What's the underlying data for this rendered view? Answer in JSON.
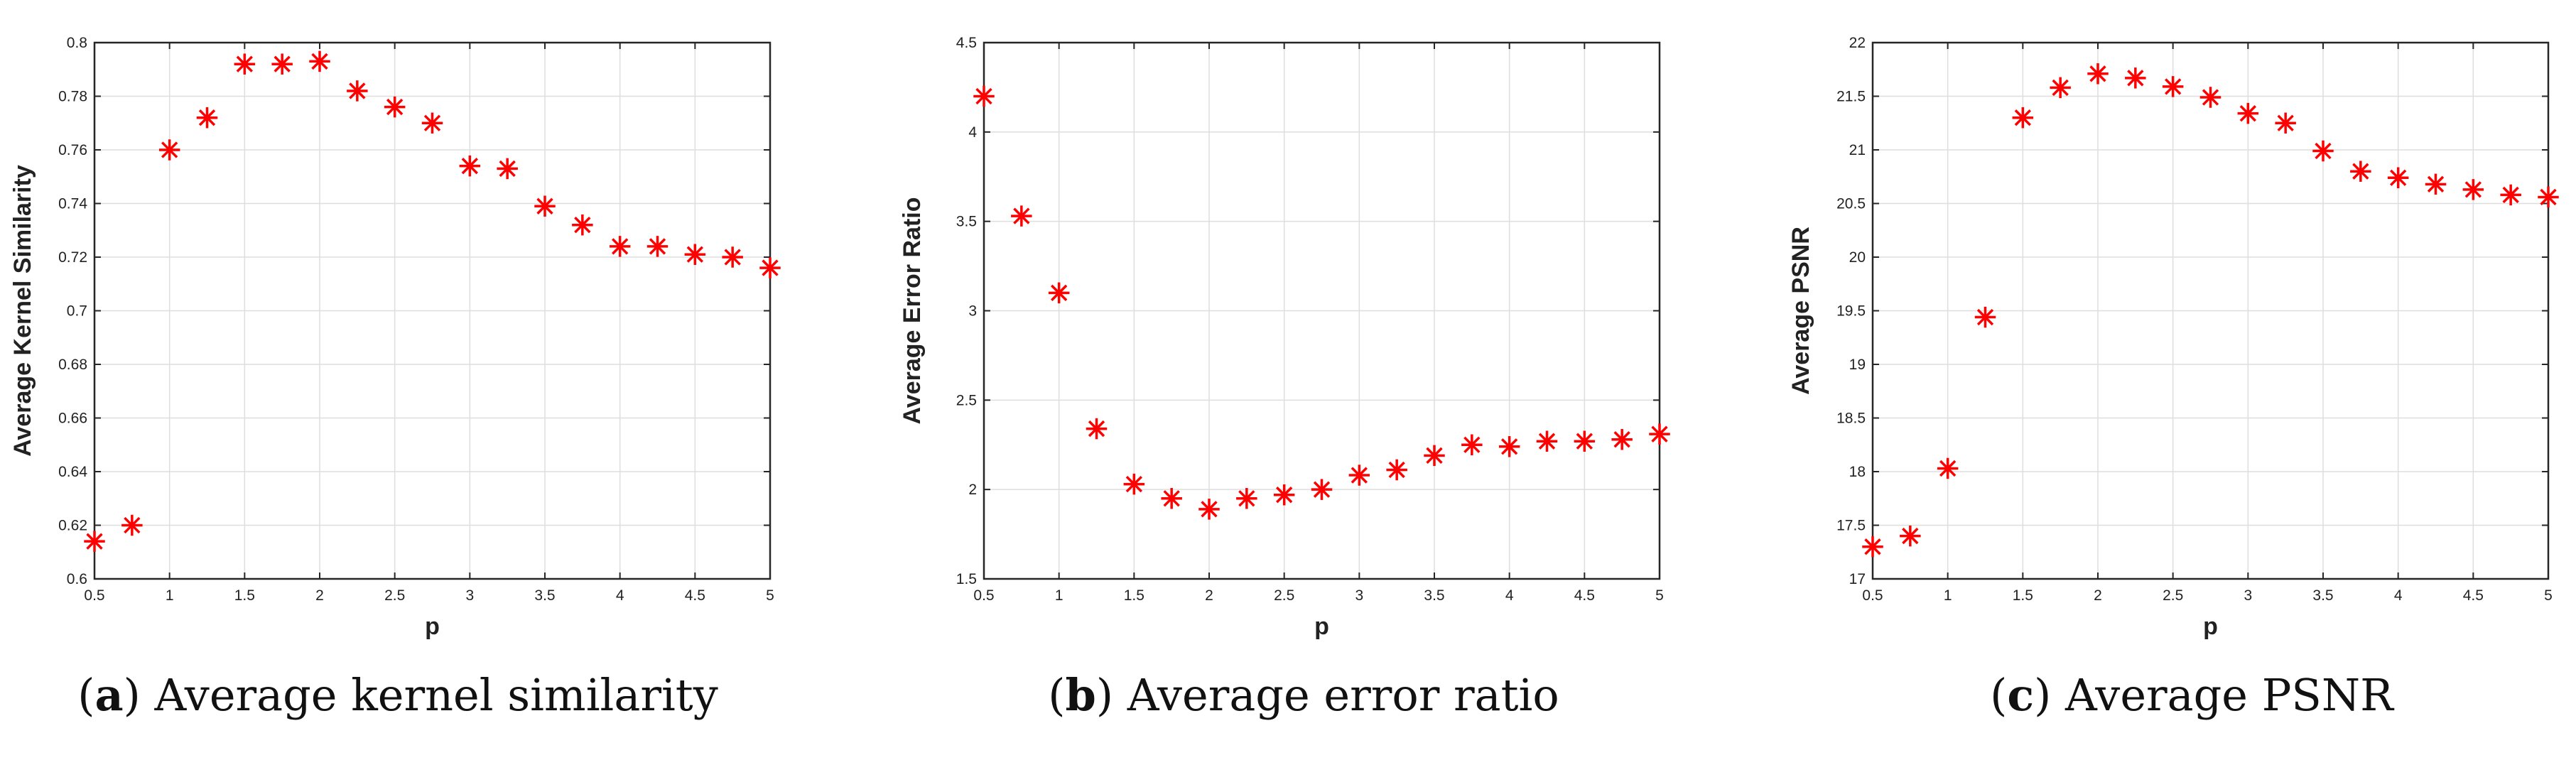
{
  "chart_data": [
    {
      "type": "scatter",
      "caption": {
        "letter": "a",
        "text": "Average kernel similarity"
      },
      "xlabel": "p",
      "ylabel": "Average Kernel Similarity",
      "xlim": [
        0.5,
        5
      ],
      "ylim": [
        0.6,
        0.8
      ],
      "xticks": [
        "0.5",
        "1",
        "1.5",
        "2",
        "2.5",
        "3",
        "3.5",
        "4",
        "4.5",
        "5"
      ],
      "yticks": [
        "0.6",
        "0.62",
        "0.64",
        "0.66",
        "0.68",
        "0.7",
        "0.72",
        "0.74",
        "0.76",
        "0.78",
        "0.8"
      ],
      "grid": true,
      "marker": "*",
      "color": "#ff0000",
      "x": [
        0.5,
        0.75,
        1,
        1.25,
        1.5,
        1.75,
        2,
        2.25,
        2.5,
        2.75,
        3,
        3.25,
        3.5,
        3.75,
        4,
        4.25,
        4.5,
        4.75,
        5
      ],
      "y": [
        0.614,
        0.62,
        0.76,
        0.772,
        0.792,
        0.792,
        0.793,
        0.782,
        0.776,
        0.77,
        0.754,
        0.753,
        0.739,
        0.732,
        0.724,
        0.724,
        0.721,
        0.72,
        0.716
      ]
    },
    {
      "type": "scatter",
      "caption": {
        "letter": "b",
        "text": "Average error ratio"
      },
      "xlabel": "p",
      "ylabel": "Average Error Ratio",
      "xlim": [
        0.5,
        5
      ],
      "ylim": [
        1.5,
        4.5
      ],
      "xticks": [
        "0.5",
        "1",
        "1.5",
        "2",
        "2.5",
        "3",
        "3.5",
        "4",
        "4.5",
        "5"
      ],
      "yticks": [
        "1.5",
        "2",
        "2.5",
        "3",
        "3.5",
        "4",
        "4.5"
      ],
      "grid": true,
      "marker": "*",
      "color": "#ff0000",
      "x": [
        0.5,
        0.75,
        1,
        1.25,
        1.5,
        1.75,
        2,
        2.25,
        2.5,
        2.75,
        3,
        3.25,
        3.5,
        3.75,
        4,
        4.25,
        4.5,
        4.75,
        5
      ],
      "y": [
        4.2,
        3.53,
        3.1,
        2.34,
        2.03,
        1.95,
        1.89,
        1.95,
        1.97,
        2.0,
        2.08,
        2.11,
        2.19,
        2.25,
        2.24,
        2.27,
        2.27,
        2.28,
        2.31
      ]
    },
    {
      "type": "scatter",
      "caption": {
        "letter": "c",
        "text": "Average PSNR"
      },
      "xlabel": "p",
      "ylabel": "Average PSNR",
      "xlim": [
        0.5,
        5
      ],
      "ylim": [
        17,
        22
      ],
      "xticks": [
        "0.5",
        "1",
        "1.5",
        "2",
        "2.5",
        "3",
        "3.5",
        "4",
        "4.5",
        "5"
      ],
      "yticks": [
        "17",
        "17.5",
        "18",
        "18.5",
        "19",
        "19.5",
        "20",
        "20.5",
        "21",
        "21.5",
        "22"
      ],
      "grid": true,
      "marker": "*",
      "color": "#ff0000",
      "x": [
        0.5,
        0.75,
        1,
        1.25,
        1.5,
        1.75,
        2,
        2.25,
        2.5,
        2.75,
        3,
        3.25,
        3.5,
        3.75,
        4,
        4.25,
        4.5,
        4.75,
        5
      ],
      "y": [
        17.3,
        17.4,
        18.03,
        19.44,
        21.3,
        21.58,
        21.71,
        21.67,
        21.59,
        21.49,
        21.34,
        21.25,
        20.99,
        20.8,
        20.74,
        20.68,
        20.63,
        20.58,
        20.56
      ]
    }
  ]
}
